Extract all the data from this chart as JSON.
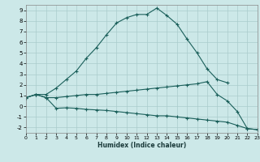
{
  "xlabel": "Humidex (Indice chaleur)",
  "background_color": "#cce8e8",
  "grid_color": "#aacccc",
  "line_color": "#1a5f5a",
  "line1_x": [
    0,
    1,
    2,
    3,
    4,
    5,
    6,
    7,
    8,
    9,
    10,
    11,
    12,
    13,
    14,
    15,
    16,
    17,
    18,
    19,
    20,
    21,
    22,
    23
  ],
  "line1_y": [
    0.8,
    1.1,
    1.1,
    1.7,
    2.5,
    3.3,
    4.5,
    5.5,
    6.7,
    7.8,
    8.3,
    8.6,
    8.6,
    9.2,
    8.5,
    7.7,
    6.3,
    5.0,
    3.5,
    2.5,
    2.2,
    null,
    null,
    null
  ],
  "line2_x": [
    0,
    1,
    2,
    3,
    4,
    5,
    6,
    7,
    8,
    9,
    10,
    11,
    12,
    13,
    14,
    15,
    16,
    17,
    18,
    19,
    20,
    21,
    22,
    23
  ],
  "line2_y": [
    0.8,
    1.1,
    0.8,
    0.8,
    0.9,
    1.0,
    1.1,
    1.1,
    1.2,
    1.3,
    1.4,
    1.5,
    1.6,
    1.7,
    1.8,
    1.9,
    2.0,
    2.1,
    2.3,
    1.1,
    0.5,
    -0.5,
    -2.1,
    -2.2
  ],
  "line3_x": [
    0,
    1,
    2,
    3,
    4,
    5,
    6,
    7,
    8,
    9,
    10,
    11,
    12,
    13,
    14,
    15,
    16,
    17,
    18,
    19,
    20,
    21,
    22,
    23
  ],
  "line3_y": [
    0.8,
    1.1,
    0.8,
    -0.2,
    -0.15,
    -0.2,
    -0.3,
    -0.35,
    -0.4,
    -0.5,
    -0.6,
    -0.7,
    -0.8,
    -0.9,
    -0.9,
    -1.0,
    -1.1,
    -1.2,
    -1.3,
    -1.4,
    -1.5,
    -1.8,
    -2.1,
    -2.2
  ],
  "xlim": [
    0,
    23
  ],
  "ylim": [
    -2.5,
    9.5
  ],
  "yticks": [
    -2,
    -1,
    0,
    1,
    2,
    3,
    4,
    5,
    6,
    7,
    8,
    9
  ],
  "xticks": [
    0,
    1,
    2,
    3,
    4,
    5,
    6,
    7,
    8,
    9,
    10,
    11,
    12,
    13,
    14,
    15,
    16,
    17,
    18,
    19,
    20,
    21,
    22,
    23
  ]
}
